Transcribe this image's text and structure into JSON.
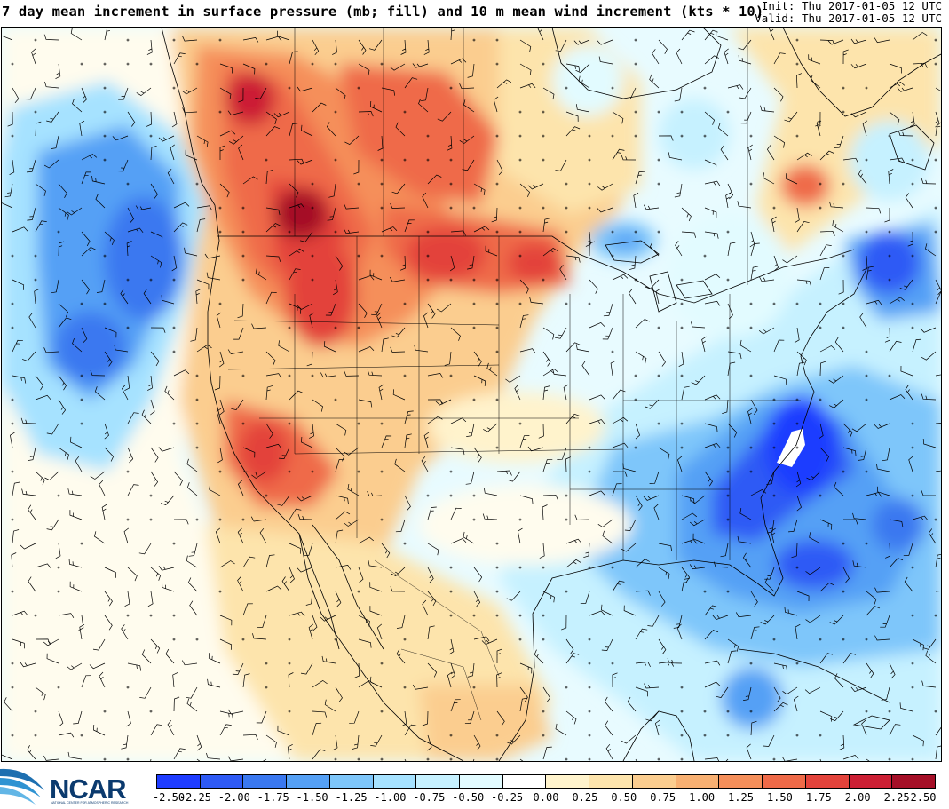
{
  "header": {
    "title": "7 day mean increment in surface pressure (mb; fill) and 10 m mean wind increment (kts * 10)",
    "init": "Init: Thu 2017-01-05 12 UTC",
    "valid": "Valid: Thu 2017-01-05 12 UTC"
  },
  "logo": {
    "text": "NCAR",
    "subtext": "NATIONAL CENTER FOR ATMOSPHERIC RESEARCH"
  },
  "colorbar": {
    "labels": [
      "-2.50",
      "-2.25",
      "-2.00",
      "-1.75",
      "-1.50",
      "-1.25",
      "-1.00",
      "-0.75",
      "-0.50",
      "-0.25",
      "0.00",
      "0.25",
      "0.50",
      "0.75",
      "1.00",
      "1.25",
      "1.50",
      "1.75",
      "2.00",
      "2.25",
      "2.50"
    ],
    "colors": [
      "#1e3cff",
      "#2e5af5",
      "#3a78f0",
      "#55a0f5",
      "#7ec6fa",
      "#a6e2ff",
      "#c6f1ff",
      "#e2fbff",
      "#ffffff",
      "#fff3cc",
      "#fde4ac",
      "#fbcd8f",
      "#f8b072",
      "#f58f5a",
      "#ef6a48",
      "#e3433b",
      "#cc1f34",
      "#a50f27"
    ]
  },
  "colors": {
    "background": "#e8fbff",
    "boundary": "#000000",
    "barb": "#000000"
  }
}
